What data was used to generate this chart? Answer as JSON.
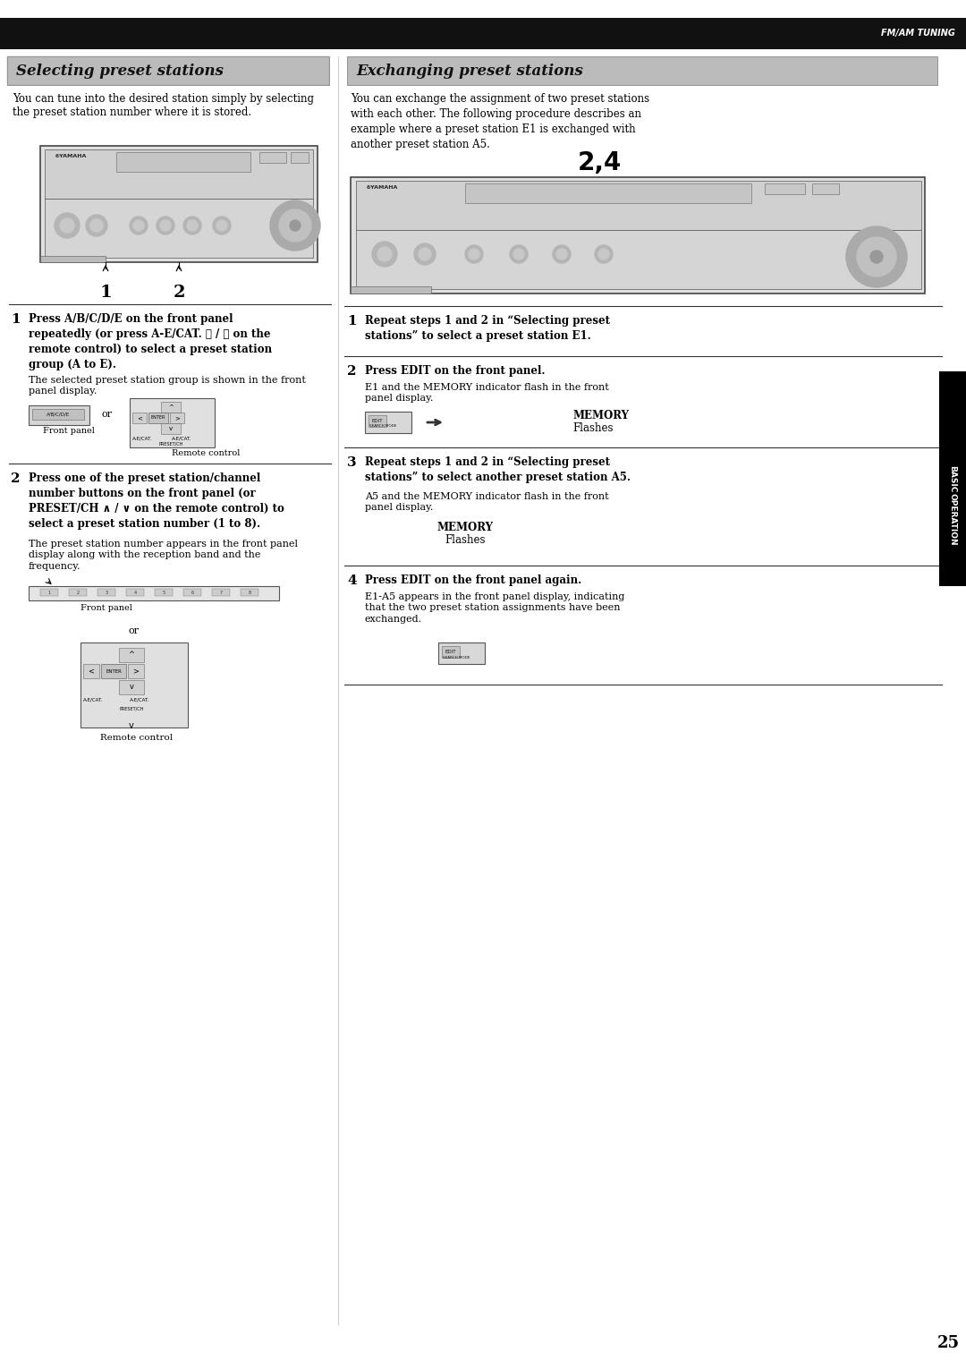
{
  "page_width": 10.8,
  "page_height": 15.31,
  "bg_color": "#ffffff",
  "header_bar_color": "#111111",
  "header_text": "FM/AM TUNING",
  "header_text_color": "#ffffff",
  "left_title": "Selecting preset stations",
  "right_title": "Exchanging preset stations",
  "title_bg_color": "#aaaaaa",
  "title_text_color": "#000000",
  "left_intro": "You can tune into the desired station simply by selecting\nthe preset station number where it is stored.",
  "right_intro": "You can exchange the assignment of two preset stations\nwith each other. The following procedure describes an\nexample where a preset station E1 is exchanged with\nanother preset station A5.",
  "page_number": "25",
  "left_step1_bold": "Press A/B/C/D/E on the front panel\nrepeatedly (or press A-E/CAT. ❮ / ❯ on the\nremote control) to select a preset station\ngroup (A to E).",
  "left_step1_norm": "The selected preset station group is shown in the front\npanel display.",
  "left_step2_bold": "Press one of the preset station/channel\nnumber buttons on the front panel (or\nPRESET/CH ∧ / ∨ on the remote control) to\nselect a preset station number (1 to 8).",
  "left_step2_norm": "The preset station number appears in the front panel\ndisplay along with the reception band and the\nfrequency.",
  "right_step1_bold": "Repeat steps 1 and 2 in “Selecting preset\nstations” to select a preset station E1.",
  "right_step2_bold": "Press EDIT on the front panel.",
  "right_step2_norm": "E1 and the MEMORY indicator flash in the front\npanel display.",
  "right_step3_bold": "Repeat steps 1 and 2 in “Selecting preset\nstations” to select another preset station A5.",
  "right_step3_norm": "A5 and the MEMORY indicator flash in the front\npanel display.",
  "right_step4_bold": "Press EDIT on the front panel again.",
  "right_step4_norm": "E1-A5 appears in the front panel display, indicating\nthat the two preset station assignments have been\nexchanged.",
  "sidebar_text": "BASIC\nOPERATION",
  "sidebar_bg": "#000000",
  "sidebar_text_color": "#ffffff",
  "label_front_panel": "Front panel",
  "label_remote_control": "Remote control",
  "label_or": "or",
  "label_24": "2,4",
  "label_memory": "MEMORY\nFlashes"
}
